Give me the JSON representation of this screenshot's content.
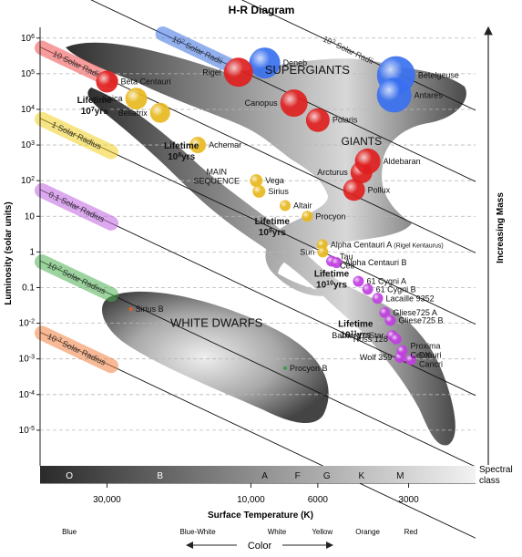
{
  "chart_data": {
    "type": "scatter",
    "title": "H-R Diagram",
    "xlabel": "Surface Temperature (K)",
    "ylabel": "Luminosity (solar units)",
    "right_label": "Increasing Mass",
    "x_scale": "log, reversed",
    "y_scale": "log",
    "xlim": [
      50000,
      1800
    ],
    "ylim": [
      1e-06,
      2000000
    ],
    "x_ticks": [
      {
        "value": 30000,
        "label": "30,000"
      },
      {
        "value": 10000,
        "label": "10,000"
      },
      {
        "value": 6000,
        "label": "6000"
      },
      {
        "value": 3000,
        "label": "3000"
      }
    ],
    "y_ticks": [
      {
        "exp": 6,
        "base": "10",
        "sup": "6"
      },
      {
        "exp": 5,
        "base": "10",
        "sup": "5"
      },
      {
        "exp": 4,
        "base": "10",
        "sup": "4"
      },
      {
        "exp": 3,
        "base": "10",
        "sup": "3"
      },
      {
        "exp": 2,
        "base": "10",
        "sup": "2"
      },
      {
        "exp": 1,
        "base": "10",
        "sup": ""
      },
      {
        "exp": 0,
        "base": "1",
        "sup": ""
      },
      {
        "exp": -1,
        "base": "0.1",
        "sup": ""
      },
      {
        "exp": -2,
        "base": "10",
        "sup": "-2"
      },
      {
        "exp": -3,
        "base": "10",
        "sup": "-3"
      },
      {
        "exp": -4,
        "base": "10",
        "sup": "-4"
      },
      {
        "exp": -5,
        "base": "10",
        "sup": "-5"
      }
    ],
    "grid": "dashed horizontal",
    "spectral_label": "Spectral class",
    "spectral_classes": [
      {
        "label": "O",
        "temp": 40000
      },
      {
        "label": "B",
        "temp": 20000
      },
      {
        "label": "A",
        "temp": 9000
      },
      {
        "label": "F",
        "temp": 7000
      },
      {
        "label": "G",
        "temp": 5600
      },
      {
        "label": "K",
        "temp": 4300
      },
      {
        "label": "M",
        "temp": 3200
      }
    ],
    "color_scale_label": "Color",
    "color_names": [
      {
        "label": "Blue",
        "temp": 40000
      },
      {
        "label": "Blue-White",
        "temp": 15000
      },
      {
        "label": "White",
        "temp": 8200
      },
      {
        "label": "Yellow",
        "temp": 5800
      },
      {
        "label": "Orange",
        "temp": 4100
      },
      {
        "label": "Red",
        "temp": 2950
      }
    ],
    "regions": [
      {
        "name": "SUPERGIANTS",
        "label": "SUPERGIANTS"
      },
      {
        "name": "GIANTS",
        "label": "GIANTS"
      },
      {
        "name": "MAIN SEQUENCE",
        "label_lines": [
          "MAIN",
          "SEQUENCE"
        ]
      },
      {
        "name": "WHITE DWARFS",
        "label": "WHITE DWARFS"
      }
    ],
    "radius_lines": [
      {
        "label": "10³ Solar Radii",
        "base": "10",
        "sup": "3",
        "rest": " Solar Radii",
        "color": "none"
      },
      {
        "label": "10² Solar Radii",
        "base": "10",
        "sup": "2",
        "rest": " Solar Radii",
        "color": "#3a6fe0"
      },
      {
        "label": "10 Solar Radii",
        "base": "10 Solar Radii",
        "sup": "",
        "rest": "",
        "color": "#f04a4a"
      },
      {
        "label": "1 Solar Radius",
        "base": "1 Solar Radius",
        "sup": "",
        "rest": "",
        "color": "#f0d020"
      },
      {
        "label": "0.1 Solar Radius",
        "base": "0.1 Solar Radius",
        "sup": "",
        "rest": "",
        "color": "#c060e0"
      },
      {
        "label": "10⁻² Solar Radius",
        "base": "10",
        "sup": "-2",
        "rest": " Solar Radius",
        "color": "#4caf50"
      },
      {
        "label": "10⁻³ Solar Radius",
        "base": "10",
        "sup": "-3",
        "rest": " Solar Radius",
        "color": "#f08040"
      }
    ],
    "lifetimes": [
      {
        "base": "10",
        "sup": "7",
        "unit": "yrs",
        "temp": 33000,
        "lum": 15000
      },
      {
        "base": "10",
        "sup": "8",
        "unit": "yrs",
        "temp": 17000,
        "lum": 800
      },
      {
        "base": "10",
        "sup": "9",
        "unit": "yrs",
        "temp": 8500,
        "lum": 6
      },
      {
        "base": "10",
        "sup": "10",
        "unit": "yrs",
        "temp": 5400,
        "lum": 0.2
      },
      {
        "base": "10",
        "sup": "11",
        "unit": "yrs",
        "temp": 4500,
        "lum": 0.008
      }
    ],
    "lifetime_word": "Lifetime",
    "stars": [
      {
        "name": "Beta Centauri",
        "label": "Beta Centauri",
        "temp": 30000,
        "lum": 60000,
        "color": "#e02020",
        "size": 12
      },
      {
        "name": "Spica",
        "label": "Spica",
        "temp": 24000,
        "lum": 20000,
        "color": "#e8b820",
        "size": 12
      },
      {
        "name": "Bellatrix",
        "label": "Bellatrix",
        "temp": 20000,
        "lum": 8000,
        "color": "#e8b820",
        "size": 11
      },
      {
        "name": "Achernar",
        "label": "Achemar",
        "temp": 15000,
        "lum": 1000,
        "color": "#e8b820",
        "size": 9
      },
      {
        "name": "Vega",
        "label": "Vega",
        "temp": 9600,
        "lum": 100,
        "color": "#e8b820",
        "size": 7
      },
      {
        "name": "Sirius",
        "label": "Sirius",
        "temp": 9400,
        "lum": 50,
        "color": "#e8b820",
        "size": 7
      },
      {
        "name": "Altair",
        "label": "Altair",
        "temp": 7700,
        "lum": 20,
        "color": "#e8b820",
        "size": 6
      },
      {
        "name": "Procyon",
        "label": "Procyon",
        "temp": 6500,
        "lum": 10,
        "color": "#e8b820",
        "size": 6
      },
      {
        "name": "Alpha Centauri A",
        "label": "Alpha Centauri A",
        "extra": "(Rigel Kentaurus)",
        "temp": 5800,
        "lum": 1.6,
        "color": "#e8b820",
        "size": 6
      },
      {
        "name": "Sun",
        "label": "Sun",
        "temp": 5778,
        "lum": 1,
        "color": "#e8b820",
        "size": 6
      },
      {
        "name": "Tau Ceti",
        "label_lines": [
          "Tau",
          "Ceti"
        ],
        "temp": 5400,
        "lum": 0.55,
        "color": "#c040e0",
        "size": 6
      },
      {
        "name": "Alpha Centauri B",
        "label": "Alpha Centauri B",
        "temp": 5200,
        "lum": 0.5,
        "color": "#c040e0",
        "size": 6
      },
      {
        "name": "61 Cygni A",
        "label": "61 Cygni A",
        "temp": 4400,
        "lum": 0.15,
        "color": "#c040e0",
        "size": 6
      },
      {
        "name": "61 Cygni B",
        "label": "61 Cygni B",
        "temp": 4100,
        "lum": 0.09,
        "color": "#c040e0",
        "size": 6
      },
      {
        "name": "Lacaille 9352",
        "label": "Lacaille 9352",
        "temp": 3800,
        "lum": 0.05,
        "color": "#c040e0",
        "size": 6
      },
      {
        "name": "Gliese 725 A",
        "label": "Gliese725 A",
        "temp": 3600,
        "lum": 0.02,
        "color": "#c040e0",
        "size": 6
      },
      {
        "name": "Gliese 725 B",
        "label": "Gliese725 B",
        "temp": 3450,
        "lum": 0.012,
        "color": "#c040e0",
        "size": 6
      },
      {
        "name": "Barnard's Star",
        "label": "Barnard's Star",
        "temp": 3400,
        "lum": 0.0045,
        "color": "#c040e0",
        "size": 6
      },
      {
        "name": "Ross 128",
        "label": "Ross 128",
        "temp": 3300,
        "lum": 0.0036,
        "color": "#c040e0",
        "size": 6
      },
      {
        "name": "Wolf 359",
        "label": "Wolf 359",
        "temp": 3200,
        "lum": 0.0011,
        "color": "#c040e0",
        "size": 6
      },
      {
        "name": "Proxima Centauri",
        "label_lines": [
          "Proxima",
          "Centauri"
        ],
        "temp": 3150,
        "lum": 0.0017,
        "color": "#c040e0",
        "size": 6
      },
      {
        "name": "DX Cancri",
        "label_lines": [
          "DX",
          "Cancri"
        ],
        "temp": 2950,
        "lum": 0.00095,
        "color": "#c040e0",
        "size": 6
      },
      {
        "name": "Sirius B",
        "label": "Sirius B",
        "temp": 25000,
        "lum": 0.025,
        "color": "#e86020",
        "size": 2
      },
      {
        "name": "Procyon B",
        "label": "Procyon B",
        "temp": 7700,
        "lum": 0.00055,
        "color": "#30a040",
        "size": 2
      },
      {
        "name": "Deneb",
        "label": "Deneb",
        "temp": 9000,
        "lum": 200000,
        "color": "#3a70f0",
        "size": 17
      },
      {
        "name": "Rigel",
        "label": "Rigel",
        "temp": 11000,
        "lum": 110000,
        "color": "#e02020",
        "size": 16
      },
      {
        "name": "Canopus",
        "label": "Canopus",
        "temp": 7200,
        "lum": 15000,
        "color": "#e02020",
        "size": 15
      },
      {
        "name": "Polaris",
        "label": "Polaris",
        "temp": 6000,
        "lum": 5000,
        "color": "#e02020",
        "size": 13
      },
      {
        "name": "Betelgeuse",
        "label": "Betelgeuse",
        "temp": 3300,
        "lum": 90000,
        "color": "#3a70f0",
        "size": 21
      },
      {
        "name": "Antares",
        "label": "Antares",
        "temp": 3350,
        "lum": 25000,
        "color": "#3a70f0",
        "size": 19
      },
      {
        "name": "Arcturus",
        "label": "Arcturus",
        "temp": 4300,
        "lum": 170,
        "color": "#e02020",
        "size": 12
      },
      {
        "name": "Aldebaran",
        "label": "Aldebaran",
        "temp": 4100,
        "lum": 350,
        "color": "#e02020",
        "size": 14
      },
      {
        "name": "Pollux",
        "label": "Pollux",
        "temp": 4550,
        "lum": 55,
        "color": "#e02020",
        "size": 12
      }
    ]
  }
}
